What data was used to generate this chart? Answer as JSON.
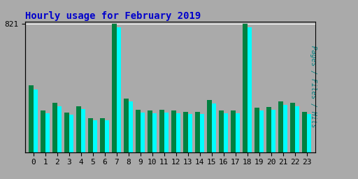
{
  "title": "Hourly usage for February 2019",
  "ylabel": "Pages / Files / Hits",
  "hours": [
    0,
    1,
    2,
    3,
    4,
    5,
    6,
    7,
    8,
    9,
    10,
    11,
    12,
    13,
    14,
    15,
    16,
    17,
    18,
    19,
    20,
    21,
    22,
    23
  ],
  "pages": [
    430,
    265,
    315,
    255,
    295,
    220,
    220,
    821,
    345,
    270,
    265,
    270,
    265,
    260,
    260,
    335,
    265,
    265,
    821,
    285,
    290,
    325,
    315,
    260
  ],
  "files": [
    400,
    250,
    295,
    240,
    278,
    205,
    205,
    800,
    325,
    255,
    250,
    255,
    250,
    245,
    245,
    310,
    250,
    250,
    800,
    265,
    270,
    305,
    295,
    245
  ],
  "ytick_label": "821",
  "ytick_value": 821,
  "bar_width": 0.38,
  "pages_color": "#008040",
  "files_color": "#00FFFF",
  "bg_color": "#AAAAAA",
  "plot_bg_color": "#AAAAAA",
  "title_color": "#0000CC",
  "ylabel_color": "#008080",
  "grid_color": "#FFFFFF",
  "title_fontsize": 10,
  "tick_fontsize": 8,
  "border_color": "#000000"
}
